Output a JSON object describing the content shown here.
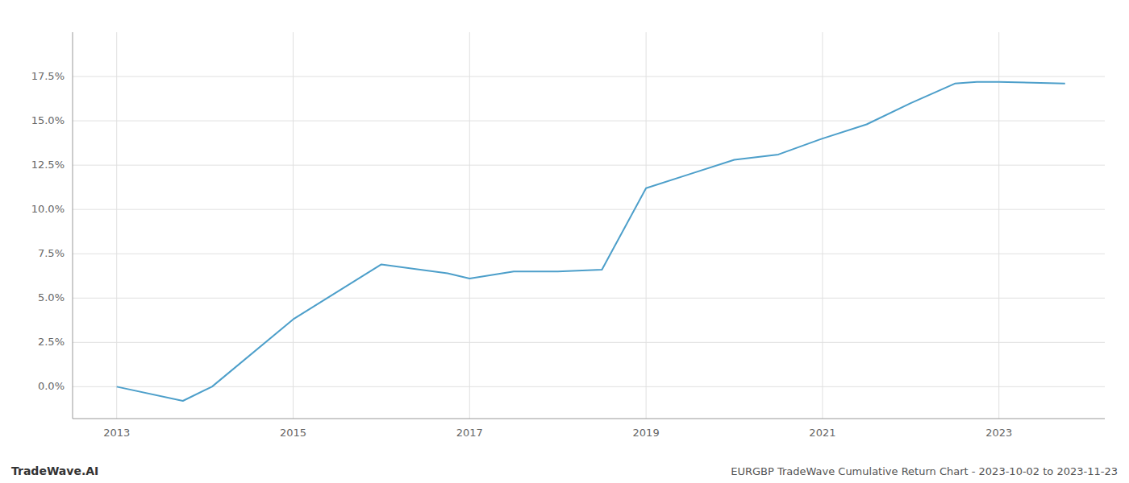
{
  "chart_data": {
    "type": "line",
    "title": "EURGBP TradeWave Cumulative Return Chart - 2023-10-02 to 2023-11-23",
    "annotations": [
      "TradeWave.AI"
    ],
    "color": "#4d9fca",
    "grid": true,
    "x": [
      2013.0,
      2013.75,
      2014.08,
      2015.0,
      2016.0,
      2016.75,
      2017.0,
      2017.5,
      2018.0,
      2018.5,
      2019.0,
      2019.5,
      2020.0,
      2020.5,
      2021.0,
      2021.5,
      2022.0,
      2022.5,
      2022.75,
      2023.0,
      2023.75
    ],
    "values": [
      0.0,
      -0.8,
      0.0,
      3.8,
      6.9,
      6.4,
      6.1,
      6.5,
      6.5,
      6.6,
      11.2,
      12.0,
      12.8,
      13.1,
      14.0,
      14.8,
      16.0,
      17.1,
      17.2,
      17.2,
      17.1
    ],
    "xlim": [
      2012.5,
      2024.2
    ],
    "ylim": [
      -1.8,
      20.0
    ],
    "xticks": [
      2013,
      2015,
      2017,
      2019,
      2021,
      2023
    ],
    "yticks": [
      {
        "value": 0.0,
        "label": "0.0%"
      },
      {
        "value": 2.5,
        "label": "2.5%"
      },
      {
        "value": 5.0,
        "label": "5.0%"
      },
      {
        "value": 7.5,
        "label": "7.5%"
      },
      {
        "value": 10.0,
        "label": "10.0%"
      },
      {
        "value": 12.5,
        "label": "12.5%"
      },
      {
        "value": 15.0,
        "label": "15.0%"
      },
      {
        "value": 17.5,
        "label": "17.5%"
      }
    ]
  }
}
